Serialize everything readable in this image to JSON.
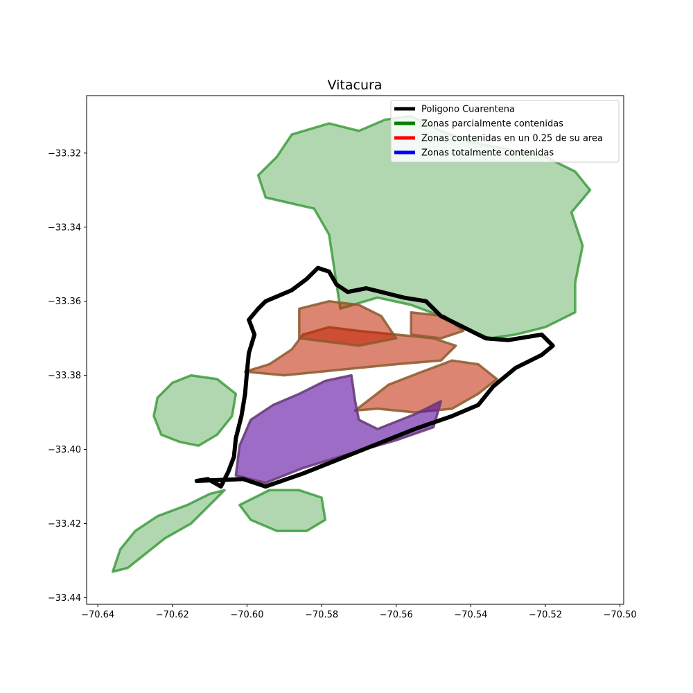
{
  "title": "Vitacura",
  "axes": {
    "xlim": [
      -70.643,
      -70.499
    ],
    "ylim": [
      -33.4418,
      -33.3045
    ],
    "x_ticks": [
      {
        "value": -70.64,
        "label": "−70.64"
      },
      {
        "value": -70.62,
        "label": "−70.62"
      },
      {
        "value": -70.6,
        "label": "−70.60"
      },
      {
        "value": -70.58,
        "label": "−70.58"
      },
      {
        "value": -70.56,
        "label": "−70.56"
      },
      {
        "value": -70.54,
        "label": "−70.54"
      },
      {
        "value": -70.52,
        "label": "−70.52"
      },
      {
        "value": -70.5,
        "label": "−70.50"
      }
    ],
    "y_ticks": [
      {
        "value": -33.32,
        "label": "−33.32"
      },
      {
        "value": -33.34,
        "label": "−33.34"
      },
      {
        "value": -33.36,
        "label": "−33.36"
      },
      {
        "value": -33.38,
        "label": "−33.38"
      },
      {
        "value": -33.4,
        "label": "−33.40"
      },
      {
        "value": -33.42,
        "label": "−33.42"
      },
      {
        "value": -33.44,
        "label": "−33.44"
      }
    ]
  },
  "legend": {
    "position": "upper right",
    "entries": [
      {
        "label": "Poligono Cuarentena",
        "color": "#000000"
      },
      {
        "label": "Zonas parcialmente contenidas",
        "color": "#008000"
      },
      {
        "label": "Zonas contenidas en un 0.25 de su area",
        "color": "#ff0000"
      },
      {
        "label": "Zonas totalmente contenidas",
        "color": "#0000ff"
      }
    ]
  },
  "colors": {
    "quarantine": "#000000",
    "partial": "#1e8c1e",
    "quarter": "#c02000",
    "quarter_outline": "#8b5a2b",
    "total": "#5a0aa0",
    "total_outline": "#6a3d7a"
  },
  "quarantine_polygon": [
    [
      -70.6135,
      -33.4085
    ],
    [
      -70.6105,
      -33.408
    ],
    [
      -70.607,
      -33.41
    ],
    [
      -70.605,
      -33.406
    ],
    [
      -70.6035,
      -33.402
    ],
    [
      -70.603,
      -33.397
    ],
    [
      -70.6015,
      -33.391
    ],
    [
      -70.6005,
      -33.385
    ],
    [
      -70.6,
      -33.379
    ],
    [
      -70.5995,
      -33.374
    ],
    [
      -70.598,
      -33.369
    ],
    [
      -70.5995,
      -33.365
    ],
    [
      -70.597,
      -33.362
    ],
    [
      -70.595,
      -33.36
    ],
    [
      -70.588,
      -33.357
    ],
    [
      -70.584,
      -33.354
    ],
    [
      -70.581,
      -33.351
    ],
    [
      -70.578,
      -33.352
    ],
    [
      -70.576,
      -33.3555
    ],
    [
      -70.573,
      -33.3575
    ],
    [
      -70.568,
      -33.3565
    ],
    [
      -70.562,
      -33.358
    ],
    [
      -70.558,
      -33.359
    ],
    [
      -70.552,
      -33.36
    ],
    [
      -70.548,
      -33.364
    ],
    [
      -70.542,
      -33.367
    ],
    [
      -70.536,
      -33.37
    ],
    [
      -70.53,
      -33.3705
    ],
    [
      -70.521,
      -33.369
    ],
    [
      -70.518,
      -33.372
    ],
    [
      -70.521,
      -33.3745
    ],
    [
      -70.528,
      -33.378
    ],
    [
      -70.534,
      -33.383
    ],
    [
      -70.538,
      -33.388
    ],
    [
      -70.545,
      -33.391
    ],
    [
      -70.555,
      -33.3945
    ],
    [
      -70.565,
      -33.3985
    ],
    [
      -70.575,
      -33.4025
    ],
    [
      -70.585,
      -33.4065
    ],
    [
      -70.595,
      -33.41
    ],
    [
      -70.601,
      -33.408
    ],
    [
      -70.6135,
      -33.4085
    ]
  ],
  "zones_quarter_contained": [
    [
      [
        -70.6005,
        -33.379
      ],
      [
        -70.594,
        -33.377
      ],
      [
        -70.588,
        -33.373
      ],
      [
        -70.585,
        -33.369
      ],
      [
        -70.578,
        -33.367
      ],
      [
        -70.57,
        -33.368
      ],
      [
        -70.56,
        -33.369
      ],
      [
        -70.55,
        -33.37
      ],
      [
        -70.544,
        -33.372
      ],
      [
        -70.548,
        -33.376
      ],
      [
        -70.56,
        -33.377
      ],
      [
        -70.57,
        -33.378
      ],
      [
        -70.58,
        -33.379
      ],
      [
        -70.59,
        -33.38
      ],
      [
        -70.6005,
        -33.379
      ]
    ],
    [
      [
        -70.586,
        -33.37
      ],
      [
        -70.586,
        -33.362
      ],
      [
        -70.578,
        -33.36
      ],
      [
        -70.57,
        -33.361
      ],
      [
        -70.564,
        -33.364
      ],
      [
        -70.56,
        -33.37
      ],
      [
        -70.57,
        -33.372
      ],
      [
        -70.586,
        -33.37
      ]
    ],
    [
      [
        -70.556,
        -33.363
      ],
      [
        -70.547,
        -33.364
      ],
      [
        -70.542,
        -33.368
      ],
      [
        -70.548,
        -33.37
      ],
      [
        -70.556,
        -33.369
      ],
      [
        -70.556,
        -33.363
      ]
    ],
    [
      [
        -70.571,
        -33.3895
      ],
      [
        -70.562,
        -33.3825
      ],
      [
        -70.553,
        -33.379
      ],
      [
        -70.545,
        -33.376
      ],
      [
        -70.538,
        -33.377
      ],
      [
        -70.533,
        -33.381
      ],
      [
        -70.538,
        -33.385
      ],
      [
        -70.545,
        -33.389
      ],
      [
        -70.555,
        -33.39
      ],
      [
        -70.565,
        -33.389
      ],
      [
        -70.571,
        -33.3895
      ]
    ]
  ],
  "zones_total_contained": [
    [
      [
        -70.603,
        -33.407
      ],
      [
        -70.602,
        -33.399
      ],
      [
        -70.599,
        -33.392
      ],
      [
        -70.593,
        -33.388
      ],
      [
        -70.586,
        -33.385
      ],
      [
        -70.579,
        -33.3815
      ],
      [
        -70.572,
        -33.38
      ],
      [
        -70.571,
        -33.387
      ],
      [
        -70.57,
        -33.392
      ],
      [
        -70.565,
        -33.3945
      ],
      [
        -70.555,
        -33.3905
      ],
      [
        -70.548,
        -33.387
      ],
      [
        -70.55,
        -33.394
      ],
      [
        -70.56,
        -33.3975
      ],
      [
        -70.572,
        -33.401
      ],
      [
        -70.585,
        -33.405
      ],
      [
        -70.595,
        -33.409
      ],
      [
        -70.603,
        -33.407
      ]
    ]
  ],
  "zones_partial": [
    [
      [
        -70.575,
        -33.362
      ],
      [
        -70.578,
        -33.342
      ],
      [
        -70.582,
        -33.335
      ],
      [
        -70.595,
        -33.332
      ],
      [
        -70.597,
        -33.326
      ],
      [
        -70.592,
        -33.321
      ],
      [
        -70.588,
        -33.315
      ],
      [
        -70.578,
        -33.312
      ],
      [
        -70.57,
        -33.314
      ],
      [
        -70.563,
        -33.311
      ],
      [
        -70.556,
        -33.31
      ],
      [
        -70.548,
        -33.314
      ],
      [
        -70.54,
        -33.317
      ],
      [
        -70.53,
        -33.319
      ],
      [
        -70.52,
        -33.321
      ],
      [
        -70.512,
        -33.325
      ],
      [
        -70.508,
        -33.33
      ],
      [
        -70.513,
        -33.336
      ],
      [
        -70.51,
        -33.345
      ],
      [
        -70.512,
        -33.355
      ],
      [
        -70.512,
        -33.363
      ],
      [
        -70.52,
        -33.367
      ],
      [
        -70.528,
        -33.369
      ],
      [
        -70.535,
        -33.37
      ],
      [
        -70.542,
        -33.367
      ],
      [
        -70.548,
        -33.364
      ],
      [
        -70.556,
        -33.361
      ],
      [
        -70.565,
        -33.359
      ],
      [
        -70.575,
        -33.362
      ]
    ],
    [
      [
        -70.62,
        -33.382
      ],
      [
        -70.624,
        -33.386
      ],
      [
        -70.625,
        -33.391
      ],
      [
        -70.623,
        -33.396
      ],
      [
        -70.618,
        -33.398
      ],
      [
        -70.613,
        -33.399
      ],
      [
        -70.608,
        -33.396
      ],
      [
        -70.604,
        -33.391
      ],
      [
        -70.603,
        -33.385
      ],
      [
        -70.608,
        -33.381
      ],
      [
        -70.615,
        -33.38
      ],
      [
        -70.62,
        -33.382
      ]
    ],
    [
      [
        -70.636,
        -33.433
      ],
      [
        -70.634,
        -33.427
      ],
      [
        -70.63,
        -33.422
      ],
      [
        -70.624,
        -33.418
      ],
      [
        -70.616,
        -33.415
      ],
      [
        -70.61,
        -33.412
      ],
      [
        -70.606,
        -33.411
      ],
      [
        -70.61,
        -33.415
      ],
      [
        -70.615,
        -33.42
      ],
      [
        -70.622,
        -33.424
      ],
      [
        -70.627,
        -33.428
      ],
      [
        -70.632,
        -33.432
      ],
      [
        -70.636,
        -33.433
      ]
    ],
    [
      [
        -70.602,
        -33.415
      ],
      [
        -70.594,
        -33.411
      ],
      [
        -70.586,
        -33.411
      ],
      [
        -70.58,
        -33.413
      ],
      [
        -70.579,
        -33.419
      ],
      [
        -70.584,
        -33.422
      ],
      [
        -70.592,
        -33.422
      ],
      [
        -70.599,
        -33.419
      ],
      [
        -70.602,
        -33.415
      ]
    ]
  ]
}
